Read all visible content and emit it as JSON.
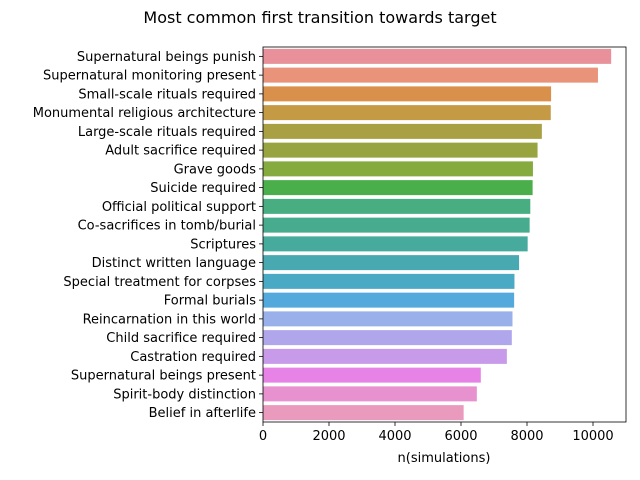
{
  "chart_data": {
    "type": "bar",
    "orientation": "horizontal",
    "title": "Most common first transition towards target",
    "xlabel": "n(simulations)",
    "ylabel": "",
    "xlim": [
      0,
      11000
    ],
    "xticks": [
      0,
      2000,
      4000,
      6000,
      8000,
      10000
    ],
    "grid": false,
    "categories": [
      "Supernatural beings punish",
      "Supernatural monitoring present",
      "Small-scale rituals required",
      "Monumental religious architecture",
      "Large-scale rituals required",
      "Adult sacrifice required",
      "Grave goods",
      "Suicide required",
      "Official political support",
      "Co-sacrifices in tomb/burial",
      "Scriptures",
      "Distinct written language",
      "Special treatment for corpses",
      "Formal burials",
      "Reincarnation in this world",
      "Child sacrifice required",
      "Castration required",
      "Supernatural beings present",
      "Spirit-body distinction",
      "Belief in afterlife"
    ],
    "values": [
      10550,
      10150,
      8730,
      8720,
      8450,
      8320,
      8180,
      8170,
      8100,
      8080,
      8020,
      7760,
      7620,
      7610,
      7560,
      7540,
      7390,
      6600,
      6480,
      6080
    ],
    "colors": [
      "#e8919a",
      "#e8937a",
      "#d9904a",
      "#c49a44",
      "#a8a042",
      "#98a440",
      "#85aa3e",
      "#4aae4a",
      "#48ae82",
      "#47ac8e",
      "#46aa9c",
      "#48aab0",
      "#4aa9c4",
      "#53a8dc",
      "#9ab0ea",
      "#b0a6ec",
      "#c79aea",
      "#e782e6",
      "#e891cf",
      "#e99abd"
    ]
  }
}
